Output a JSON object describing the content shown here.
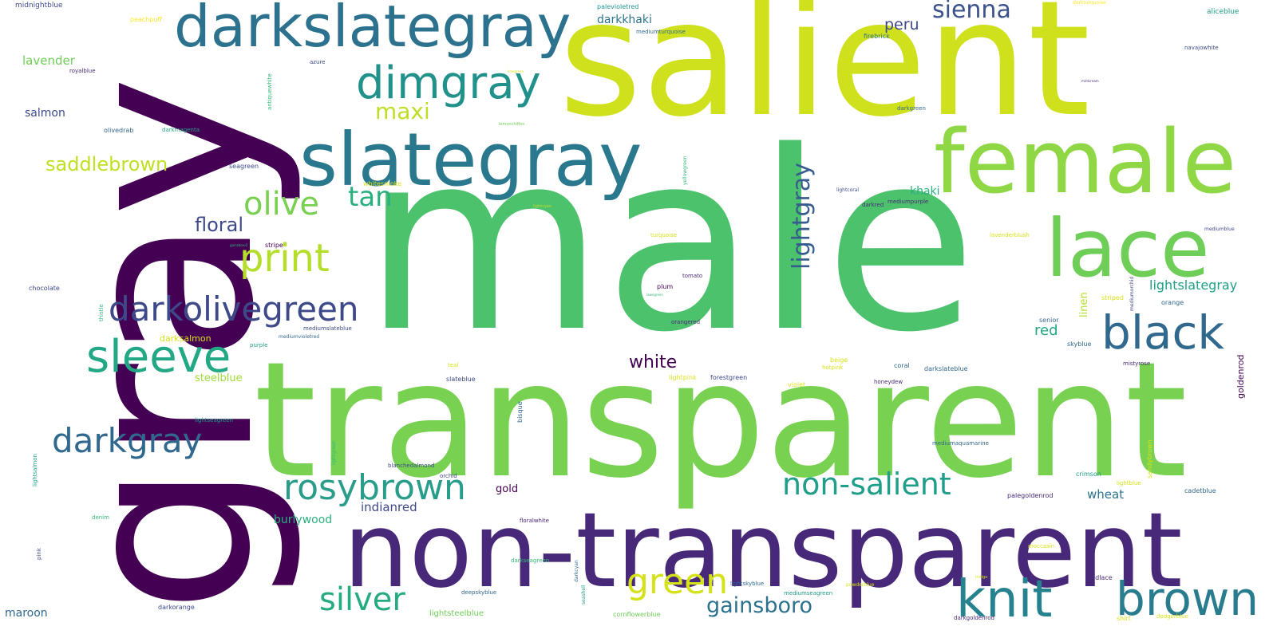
{
  "palette": {
    "deep_purple": "#440154",
    "indigo": "#482878",
    "slate_blue": "#3e4989",
    "steel_blue": "#31688e",
    "teal": "#26828e",
    "sea_green": "#1f9e89",
    "green": "#35b779",
    "light_green": "#6ece58",
    "lime": "#b5de2b",
    "yellow": "#c8dc1e"
  },
  "words": [
    {
      "text": "gray"
    },
    {
      "text": "male"
    },
    {
      "text": "salient"
    },
    {
      "text": "transparent"
    },
    {
      "text": "non-transparent"
    },
    {
      "text": "female"
    },
    {
      "text": "darkslategray"
    },
    {
      "text": "slategray"
    },
    {
      "text": "lace"
    },
    {
      "text": "dimgray"
    },
    {
      "text": "black"
    },
    {
      "text": "darkolivegreen"
    },
    {
      "text": "sleeve"
    },
    {
      "text": "knit"
    },
    {
      "text": "brown"
    },
    {
      "text": "rosybrown"
    },
    {
      "text": "print"
    },
    {
      "text": "darkgray"
    },
    {
      "text": "non-salient"
    },
    {
      "text": "green"
    },
    {
      "text": "silver"
    },
    {
      "text": "olive"
    },
    {
      "text": "sienna"
    },
    {
      "text": "gainsboro"
    },
    {
      "text": "tan"
    },
    {
      "text": "maxi"
    },
    {
      "text": "lightgray"
    },
    {
      "text": "saddlebrown"
    },
    {
      "text": "floral"
    },
    {
      "text": "white"
    },
    {
      "text": "peru"
    },
    {
      "text": "lightslategray"
    },
    {
      "text": "red"
    },
    {
      "text": "darkkhaki"
    },
    {
      "text": "lavender"
    },
    {
      "text": "salmon"
    },
    {
      "text": "khaki"
    },
    {
      "text": "indianred"
    },
    {
      "text": "burlywood"
    },
    {
      "text": "wheat"
    },
    {
      "text": "linen"
    },
    {
      "text": "gold"
    },
    {
      "text": "steelblue"
    },
    {
      "text": "darksalmon"
    },
    {
      "text": "maroon"
    },
    {
      "text": "goldenrod"
    },
    {
      "text": "midnightblue"
    },
    {
      "text": "aliceblue"
    },
    {
      "text": "peachpuff"
    },
    {
      "text": "palevioletred"
    },
    {
      "text": "mediumturquoise"
    },
    {
      "text": "firebrick"
    },
    {
      "text": "navajowhite"
    },
    {
      "text": "darkturquoise"
    },
    {
      "text": "royalblue"
    },
    {
      "text": "azure"
    },
    {
      "text": "antiquewhite"
    },
    {
      "text": "olivedrab"
    },
    {
      "text": "darkmagenta"
    },
    {
      "text": "lemonchiffon"
    },
    {
      "text": "darkgreen"
    },
    {
      "text": "seagreen"
    },
    {
      "text": "whitesmoke"
    },
    {
      "text": "yellowgreen"
    },
    {
      "text": "lightcoral"
    },
    {
      "text": "darkred"
    },
    {
      "text": "mediumpurple"
    },
    {
      "text": "lightcyan"
    },
    {
      "text": "stripe"
    },
    {
      "text": "turquoise"
    },
    {
      "text": "lavenderblush"
    },
    {
      "text": "mediumblue"
    },
    {
      "text": "tomato"
    },
    {
      "text": "plum"
    },
    {
      "text": "chocolate"
    },
    {
      "text": "thistle"
    },
    {
      "text": "mediumslateblue"
    },
    {
      "text": "mediumvioletred"
    },
    {
      "text": "orangered"
    },
    {
      "text": "striped"
    },
    {
      "text": "mediumorchid"
    },
    {
      "text": "orange"
    },
    {
      "text": "senior"
    },
    {
      "text": "skyblue"
    },
    {
      "text": "purple"
    },
    {
      "text": "teal"
    },
    {
      "text": "lightpink"
    },
    {
      "text": "forestgreen"
    },
    {
      "text": "beige"
    },
    {
      "text": "hotpink"
    },
    {
      "text": "coral"
    },
    {
      "text": "darkslateblue"
    },
    {
      "text": "mistyrose"
    },
    {
      "text": "slateblue"
    },
    {
      "text": "violet"
    },
    {
      "text": "honeydew"
    },
    {
      "text": "lightseagreen"
    },
    {
      "text": "bisque"
    },
    {
      "text": "lightgreen"
    },
    {
      "text": "mediumaquamarine"
    },
    {
      "text": "sandybrown"
    },
    {
      "text": "crimson"
    },
    {
      "text": "lightblue"
    },
    {
      "text": "cadetblue"
    },
    {
      "text": "blanchedalmond"
    },
    {
      "text": "orchid"
    },
    {
      "text": "palegoldenrod"
    },
    {
      "text": "lightsalmon"
    },
    {
      "text": "denim"
    },
    {
      "text": "floralwhite"
    },
    {
      "text": "pink"
    },
    {
      "text": "moccasin"
    },
    {
      "text": "darkseagreen"
    },
    {
      "text": "darkcyan"
    },
    {
      "text": "indigo"
    },
    {
      "text": "oldlace"
    },
    {
      "text": "seashell"
    },
    {
      "text": "deepskyblue"
    },
    {
      "text": "lightskyblue"
    },
    {
      "text": "mediumseagreen"
    },
    {
      "text": "powderblue"
    },
    {
      "text": "darkorange"
    },
    {
      "text": "lightsteelblue"
    },
    {
      "text": "cornflowerblue"
    },
    {
      "text": "darkgoldenrod"
    },
    {
      "text": "shirt"
    },
    {
      "text": "dodgerblue"
    },
    {
      "text": "mintcream"
    },
    {
      "text": "limegreen"
    },
    {
      "text": "lawngreen"
    },
    {
      "text": "gainsboro2"
    }
  ]
}
